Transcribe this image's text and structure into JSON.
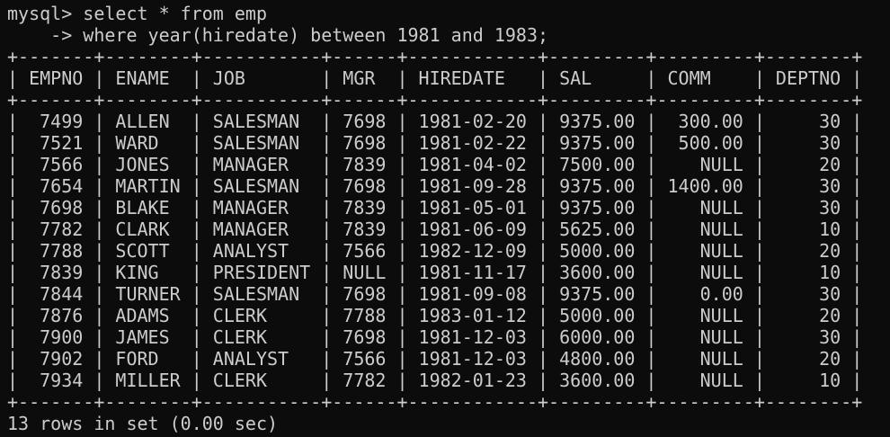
{
  "terminal": {
    "prompt_line": "mysql> select * from emp",
    "continuation_line": "    -> where year(hiredate) between 1981 and 1983;",
    "border_line": "+-------+--------+-----------+------+------------+---------+---------+--------+",
    "header_line": "| EMPNO | ENAME  | JOB       | MGR  | HIREDATE   | SAL     | COMM    | DEPTNO |",
    "rows": [
      "|  7499 | ALLEN  | SALESMAN  | 7698 | 1981-02-20 | 9375.00 |  300.00 |     30 |",
      "|  7521 | WARD   | SALESMAN  | 7698 | 1981-02-22 | 9375.00 |  500.00 |     30 |",
      "|  7566 | JONES  | MANAGER   | 7839 | 1981-04-02 | 7500.00 |    NULL |     20 |",
      "|  7654 | MARTIN | SALESMAN  | 7698 | 1981-09-28 | 9375.00 | 1400.00 |     30 |",
      "|  7698 | BLAKE  | MANAGER   | 7839 | 1981-05-01 | 9375.00 |    NULL |     30 |",
      "|  7782 | CLARK  | MANAGER   | 7839 | 1981-06-09 | 5625.00 |    NULL |     10 |",
      "|  7788 | SCOTT  | ANALYST   | 7566 | 1982-12-09 | 5000.00 |    NULL |     20 |",
      "|  7839 | KING   | PRESIDENT | NULL | 1981-11-17 | 3600.00 |    NULL |     10 |",
      "|  7844 | TURNER | SALESMAN  | 7698 | 1981-09-08 | 9375.00 |    0.00 |     30 |",
      "|  7876 | ADAMS  | CLERK     | 7788 | 1983-01-12 | 5000.00 |    NULL |     20 |",
      "|  7900 | JAMES  | CLERK     | 7698 | 1981-12-03 | 6000.00 |    NULL |     30 |",
      "|  7902 | FORD   | ANALYST   | 7566 | 1981-12-03 | 4800.00 |    NULL |     20 |",
      "|  7934 | MILLER | CLERK     | 7782 | 1982-01-23 | 3600.00 |    NULL |     10 |"
    ],
    "summary_line": "13 rows in set (0.00 sec)"
  },
  "colors": {
    "background": "#0c0c0c",
    "text": "#cccccc"
  }
}
